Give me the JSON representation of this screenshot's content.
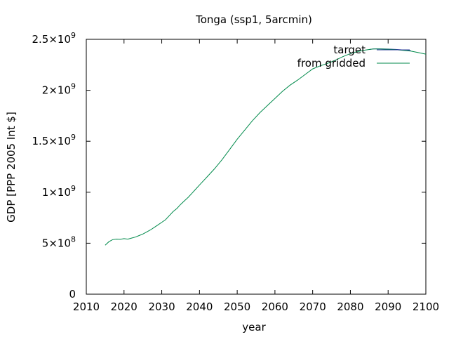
{
  "chart_data": {
    "type": "line",
    "title": "Tonga (ssp1, 5arcmin)",
    "xlabel": "year",
    "ylabel": "GDP [PPP 2005 Int $]",
    "xlim": [
      2010,
      2100
    ],
    "ylim": [
      0,
      2500000000
    ],
    "x_ticks": [
      "2010",
      "2020",
      "2030",
      "2040",
      "2050",
      "2060",
      "2070",
      "2080",
      "2090",
      "2100"
    ],
    "y_ticks": [
      {
        "value": 0,
        "mantissa": "0",
        "exp": ""
      },
      {
        "value": 500000000,
        "mantissa": "5×10",
        "exp": "8"
      },
      {
        "value": 1000000000,
        "mantissa": "1×10",
        "exp": "9"
      },
      {
        "value": 1500000000,
        "mantissa": "1.5×10",
        "exp": "9"
      },
      {
        "value": 2000000000,
        "mantissa": "2×10",
        "exp": "9"
      },
      {
        "value": 2500000000,
        "mantissa": "2.5×10",
        "exp": "9"
      }
    ],
    "grid": false,
    "legend_position": "top-right",
    "series": [
      {
        "name": "target",
        "color": "#2c3e9a",
        "x": [
          2085,
          2086,
          2087,
          2088,
          2089,
          2090,
          2091,
          2092,
          2093,
          2094,
          2095,
          2096
        ],
        "y": [
          2400000000,
          2405000000,
          2407000000,
          2406000000,
          2405000000,
          2404000000,
          2403000000,
          2401000000,
          2398000000,
          2396000000,
          2394000000,
          2390000000
        ]
      },
      {
        "name": "from gridded",
        "color": "#008a4b",
        "x": [
          2015,
          2016,
          2017,
          2018,
          2019,
          2020,
          2021,
          2022,
          2023,
          2024,
          2025,
          2026,
          2027,
          2028,
          2029,
          2030,
          2031,
          2032,
          2033,
          2034,
          2035,
          2036,
          2037,
          2038,
          2039,
          2040,
          2042,
          2044,
          2046,
          2048,
          2050,
          2052,
          2054,
          2056,
          2058,
          2060,
          2062,
          2064,
          2066,
          2068,
          2070,
          2072,
          2074,
          2076,
          2078,
          2080,
          2082,
          2084,
          2086,
          2088,
          2090,
          2092,
          2094,
          2096,
          2098,
          2100
        ],
        "y": [
          480000000,
          515000000,
          535000000,
          540000000,
          538000000,
          545000000,
          540000000,
          550000000,
          560000000,
          575000000,
          590000000,
          610000000,
          630000000,
          655000000,
          680000000,
          705000000,
          730000000,
          770000000,
          810000000,
          840000000,
          880000000,
          915000000,
          950000000,
          990000000,
          1030000000,
          1070000000,
          1150000000,
          1230000000,
          1320000000,
          1420000000,
          1520000000,
          1610000000,
          1700000000,
          1780000000,
          1850000000,
          1920000000,
          1990000000,
          2050000000,
          2100000000,
          2155000000,
          2210000000,
          2240000000,
          2265000000,
          2295000000,
          2330000000,
          2360000000,
          2380000000,
          2395000000,
          2405000000,
          2405000000,
          2403000000,
          2398000000,
          2392000000,
          2385000000,
          2370000000,
          2355000000
        ]
      }
    ]
  }
}
